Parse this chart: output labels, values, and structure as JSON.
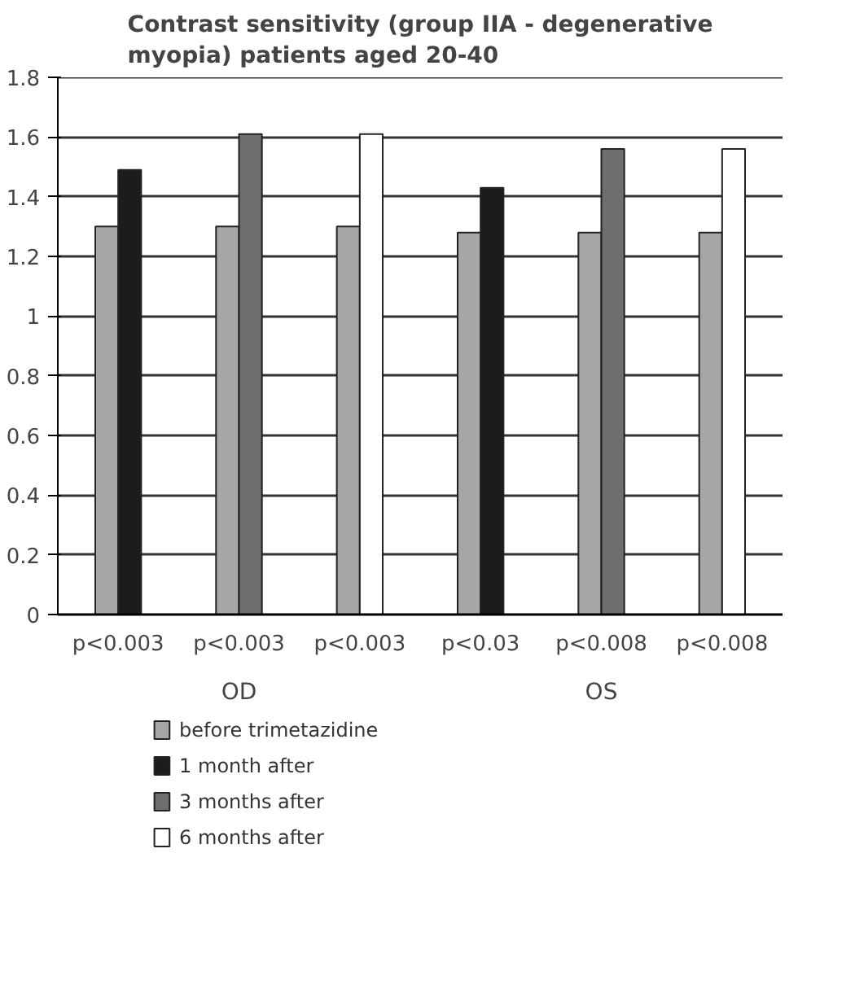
{
  "chart_data": {
    "type": "bar",
    "title": "Contrast sensitivity (group IIA - degenerative myopia) patients aged 20-40",
    "categories": [
      "p<0.003",
      "p<0.003",
      "p<0.003",
      "p<0.03",
      "p<0.008",
      "p<0.008"
    ],
    "annotations": [
      "OD",
      "OS"
    ],
    "series": [
      {
        "name": "before trimetazidine",
        "color": "#a6a6a6",
        "values": [
          1.3,
          1.3,
          1.3,
          1.28,
          1.28,
          1.28
        ]
      },
      {
        "name": "1 month after",
        "color": "#1c1c1c",
        "values": [
          1.49,
          null,
          null,
          1.43,
          null,
          null
        ]
      },
      {
        "name": "3 months after",
        "color": "#6e6e6e",
        "values": [
          null,
          1.61,
          null,
          null,
          1.56,
          null
        ]
      },
      {
        "name": "6 months after",
        "color": "#ffffff",
        "values": [
          null,
          null,
          1.61,
          null,
          null,
          1.56
        ]
      }
    ],
    "ylim": [
      0,
      1.8
    ],
    "yticks": [
      0,
      0.2,
      0.4,
      0.6,
      0.8,
      1,
      1.2,
      1.4,
      1.6,
      1.8
    ],
    "grid": "y",
    "legend": "bottom"
  }
}
